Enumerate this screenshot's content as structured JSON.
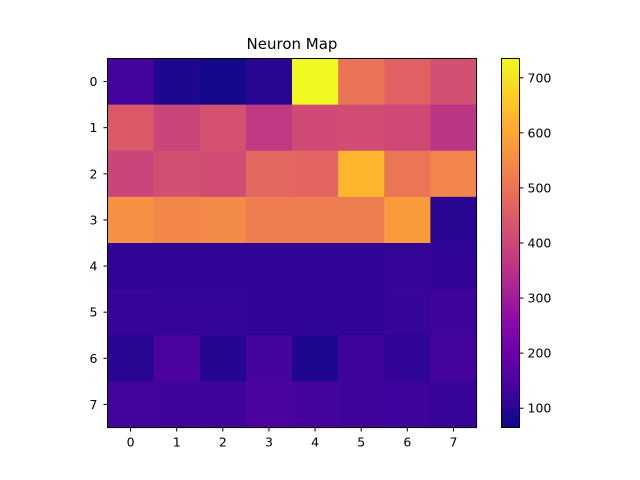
{
  "chart_data": {
    "type": "heatmap",
    "title": "Neuron Map",
    "xlabel": "",
    "ylabel": "",
    "x_categories": [
      "0",
      "1",
      "2",
      "3",
      "4",
      "5",
      "6",
      "7"
    ],
    "y_categories": [
      "0",
      "1",
      "2",
      "3",
      "4",
      "5",
      "6",
      "7"
    ],
    "values": [
      [
        140,
        85,
        75,
        100,
        735,
        500,
        460,
        420
      ],
      [
        445,
        395,
        425,
        370,
        410,
        415,
        405,
        360
      ],
      [
        395,
        420,
        415,
        475,
        470,
        630,
        505,
        535
      ],
      [
        560,
        540,
        545,
        520,
        520,
        520,
        580,
        100
      ],
      [
        110,
        110,
        110,
        110,
        110,
        110,
        115,
        110
      ],
      [
        120,
        115,
        115,
        110,
        110,
        110,
        120,
        130
      ],
      [
        100,
        150,
        95,
        140,
        85,
        130,
        110,
        140
      ],
      [
        135,
        130,
        130,
        150,
        140,
        130,
        125,
        120
      ]
    ],
    "colormap": "plasma",
    "vmin": 65,
    "vmax": 735,
    "colorbar": {
      "ticks": [
        100,
        200,
        300,
        400,
        500,
        600,
        700
      ],
      "tick_labels": [
        "100",
        "200",
        "300",
        "400",
        "500",
        "600",
        "700"
      ]
    },
    "grid": false
  }
}
